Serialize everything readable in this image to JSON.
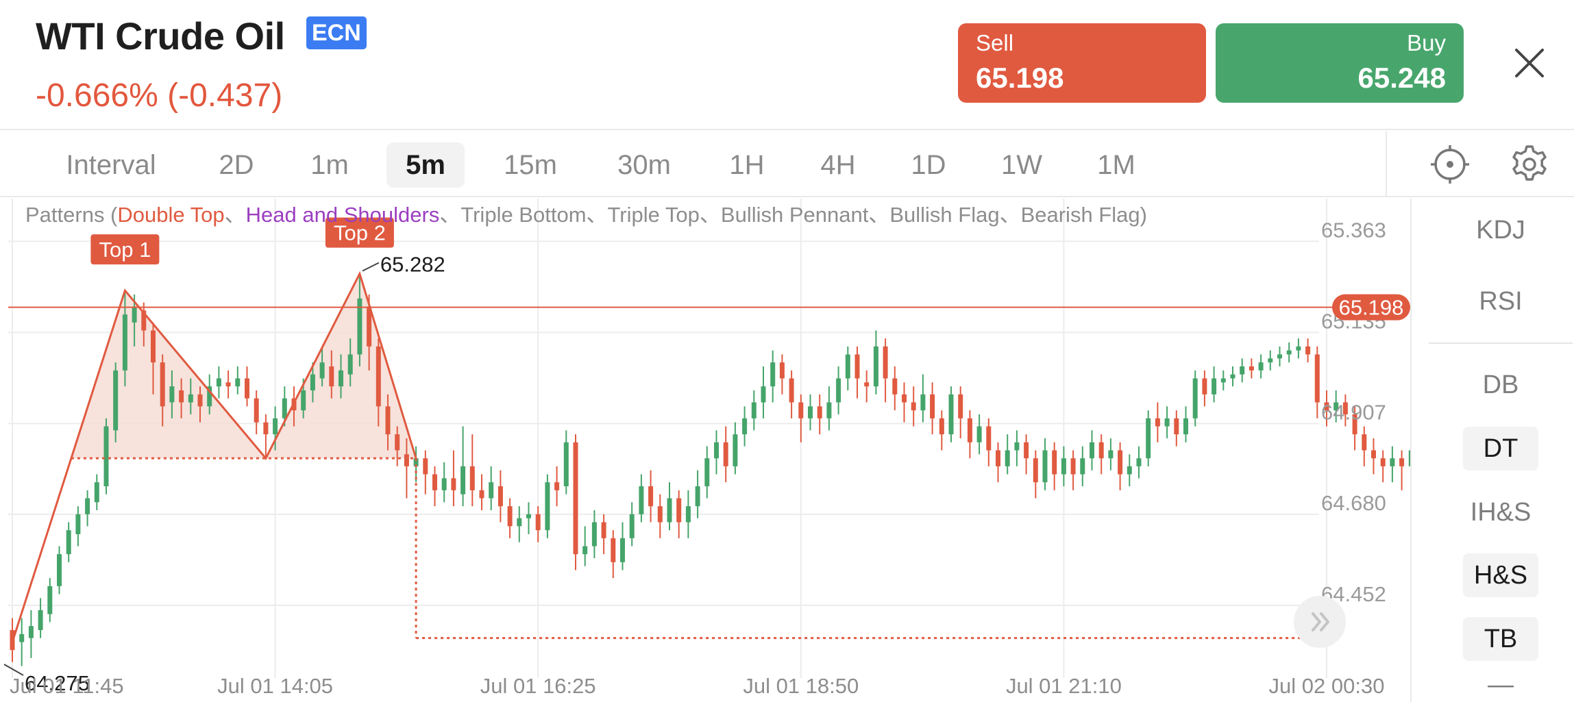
{
  "header": {
    "title": "WTI Crude Oil",
    "badge": "ECN",
    "change": "-0.666% (-0.437)",
    "sell_label": "Sell",
    "sell_price": "65.198",
    "buy_label": "Buy",
    "buy_price": "65.248",
    "close_icon": "close-icon"
  },
  "intervals": {
    "label": "Interval",
    "items": [
      "2D",
      "1m",
      "5m",
      "15m",
      "30m",
      "1H",
      "4H",
      "1D",
      "1W",
      "1M"
    ],
    "active": "5m"
  },
  "tools": {
    "icons": [
      "crosshair-icon",
      "gear-icon"
    ]
  },
  "indicators": {
    "items": [
      "KDJ",
      "RSI",
      "DB",
      "DT",
      "IH&S",
      "H&S",
      "TB",
      "—"
    ],
    "selected": [
      "DT",
      "H&S",
      "TB"
    ]
  },
  "legend": {
    "prefix": "Patterns (",
    "double_top": "Double Top",
    "sep1": "、",
    "head_shoulders": "Head and Shoulders",
    "rest": "、Triple Bottom、Triple Top、Bullish Pennant、Bullish Flag、Bearish Flag)"
  },
  "colors": {
    "up": "#45a46a",
    "down": "#e05a40",
    "grid": "#ececec",
    "pattern": "#e05a40",
    "pattern_fill": "#f6ddd6",
    "price_tag_bg": "#e05a40"
  },
  "chart_data": {
    "type": "candlestick",
    "title": "",
    "y_ticks": [
      "65.363",
      "65.135",
      "64.907",
      "64.680",
      "64.452"
    ],
    "y_tick_values": [
      65.363,
      65.135,
      64.907,
      64.68,
      64.452
    ],
    "x_ticks": [
      "Jul 01 11:45",
      "Jul 01 14:05",
      "Jul 01 16:25",
      "Jul 01 18:50",
      "Jul 01 21:10",
      "Jul 02 00:30"
    ],
    "x_tick_candle_index": [
      0,
      28,
      56,
      84,
      112,
      140
    ],
    "ylim": [
      64.27,
      65.47
    ],
    "current_price": "65.198",
    "current_price_value": 65.198,
    "high_label": "65.282",
    "low_label": "64.275",
    "pattern": {
      "name": "Double Top",
      "top1_label": "Top 1",
      "top2_label": "Top 2",
      "points": [
        [
          0,
          64.36
        ],
        [
          12,
          65.24
        ],
        [
          27,
          64.82
        ],
        [
          37,
          65.282
        ],
        [
          43,
          64.82
        ]
      ],
      "neckline": 64.82,
      "target": 64.37,
      "target_end_index": 141
    },
    "candles": [
      [
        64.39,
        64.34,
        64.31,
        64.42
      ],
      [
        64.36,
        64.38,
        64.3,
        64.42
      ],
      [
        64.37,
        64.4,
        64.32,
        64.44
      ],
      [
        64.39,
        64.44,
        64.37,
        64.47
      ],
      [
        64.43,
        64.5,
        64.41,
        64.52
      ],
      [
        64.5,
        64.58,
        64.48,
        64.6
      ],
      [
        64.58,
        64.64,
        64.56,
        64.66
      ],
      [
        64.63,
        64.68,
        64.6,
        64.7
      ],
      [
        64.68,
        64.72,
        64.65,
        64.74
      ],
      [
        64.71,
        64.76,
        64.69,
        64.78
      ],
      [
        64.75,
        64.9,
        64.73,
        64.92
      ],
      [
        64.89,
        65.04,
        64.86,
        65.06
      ],
      [
        65.04,
        65.18,
        65.0,
        65.24
      ],
      [
        65.16,
        65.2,
        65.1,
        65.23
      ],
      [
        65.19,
        65.14,
        65.1,
        65.21
      ],
      [
        65.14,
        65.06,
        64.98,
        65.16
      ],
      [
        65.06,
        64.95,
        64.9,
        65.08
      ],
      [
        64.96,
        65.0,
        64.92,
        65.04
      ],
      [
        64.99,
        64.96,
        64.92,
        65.02
      ],
      [
        64.96,
        64.98,
        64.93,
        65.02
      ],
      [
        64.98,
        64.95,
        64.91,
        65.0
      ],
      [
        64.95,
        65.0,
        64.93,
        65.03
      ],
      [
        65.0,
        65.02,
        64.97,
        65.05
      ],
      [
        65.01,
        65.0,
        64.97,
        65.04
      ],
      [
        65.0,
        65.02,
        64.98,
        65.05
      ],
      [
        65.02,
        64.97,
        64.95,
        65.05
      ],
      [
        64.97,
        64.91,
        64.88,
        64.99
      ],
      [
        64.91,
        64.88,
        64.82,
        64.93
      ],
      [
        64.88,
        64.92,
        64.84,
        64.95
      ],
      [
        64.92,
        64.97,
        64.9,
        65.0
      ],
      [
        64.97,
        64.94,
        64.9,
        65.0
      ],
      [
        64.94,
        64.99,
        64.92,
        65.02
      ],
      [
        64.99,
        65.03,
        64.96,
        65.06
      ],
      [
        65.02,
        65.06,
        65.0,
        65.1
      ],
      [
        65.05,
        65.0,
        64.97,
        65.09
      ],
      [
        65.0,
        65.04,
        64.97,
        65.08
      ],
      [
        65.03,
        65.08,
        65.0,
        65.12
      ],
      [
        65.08,
        65.22,
        65.05,
        65.28
      ],
      [
        65.2,
        65.1,
        65.04,
        65.23
      ],
      [
        65.1,
        64.95,
        64.9,
        65.12
      ],
      [
        64.95,
        64.88,
        64.84,
        64.98
      ],
      [
        64.88,
        64.84,
        64.8,
        64.9
      ],
      [
        64.83,
        64.8,
        64.72,
        64.87
      ],
      [
        64.8,
        64.82,
        64.76,
        64.85
      ],
      [
        64.82,
        64.78,
        64.73,
        64.84
      ],
      [
        64.78,
        64.74,
        64.7,
        64.8
      ],
      [
        64.74,
        64.77,
        64.71,
        64.81
      ],
      [
        64.77,
        64.74,
        64.7,
        64.84
      ],
      [
        64.73,
        64.8,
        64.7,
        64.9
      ],
      [
        64.8,
        64.74,
        64.7,
        64.88
      ],
      [
        64.74,
        64.72,
        64.69,
        64.78
      ],
      [
        64.72,
        64.76,
        64.69,
        64.8
      ],
      [
        64.75,
        64.7,
        64.66,
        64.79
      ],
      [
        64.7,
        64.65,
        64.62,
        64.72
      ],
      [
        64.65,
        64.67,
        64.61,
        64.7
      ],
      [
        64.67,
        64.68,
        64.63,
        64.71
      ],
      [
        64.68,
        64.64,
        64.61,
        64.7
      ],
      [
        64.64,
        64.76,
        64.62,
        64.78
      ],
      [
        64.76,
        64.74,
        64.7,
        64.8
      ],
      [
        64.75,
        64.86,
        64.73,
        64.89
      ],
      [
        64.86,
        64.58,
        64.54,
        64.88
      ],
      [
        64.58,
        64.6,
        64.55,
        64.65
      ],
      [
        64.6,
        64.66,
        64.57,
        64.69
      ],
      [
        64.66,
        64.62,
        64.58,
        64.68
      ],
      [
        64.62,
        64.56,
        64.52,
        64.64
      ],
      [
        64.56,
        64.62,
        64.54,
        64.66
      ],
      [
        64.62,
        64.68,
        64.6,
        64.71
      ],
      [
        64.68,
        64.75,
        64.66,
        64.78
      ],
      [
        64.75,
        64.7,
        64.66,
        64.79
      ],
      [
        64.7,
        64.66,
        64.62,
        64.73
      ],
      [
        64.66,
        64.72,
        64.64,
        64.76
      ],
      [
        64.72,
        64.66,
        64.62,
        64.74
      ],
      [
        64.66,
        64.7,
        64.62,
        64.74
      ],
      [
        64.7,
        64.75,
        64.67,
        64.79
      ],
      [
        64.75,
        64.82,
        64.72,
        64.85
      ],
      [
        64.82,
        64.86,
        64.78,
        64.89
      ],
      [
        64.86,
        64.8,
        64.76,
        64.9
      ],
      [
        64.8,
        64.88,
        64.78,
        64.91
      ],
      [
        64.88,
        64.92,
        64.85,
        64.95
      ],
      [
        64.92,
        64.96,
        64.89,
        64.99
      ],
      [
        64.96,
        65.0,
        64.92,
        65.05
      ],
      [
        65.0,
        65.06,
        64.96,
        65.09
      ],
      [
        65.06,
        65.02,
        64.98,
        65.08
      ],
      [
        65.02,
        64.96,
        64.92,
        65.04
      ],
      [
        64.96,
        64.92,
        64.86,
        64.98
      ],
      [
        64.92,
        64.95,
        64.89,
        64.98
      ],
      [
        64.95,
        64.92,
        64.88,
        64.98
      ],
      [
        64.92,
        64.96,
        64.89,
        65.0
      ],
      [
        64.96,
        65.02,
        64.93,
        65.05
      ],
      [
        65.02,
        65.08,
        64.99,
        65.1
      ],
      [
        65.08,
        65.02,
        64.97,
        65.1
      ],
      [
        65.01,
        65.0,
        64.96,
        65.04
      ],
      [
        65.0,
        65.1,
        64.98,
        65.14
      ],
      [
        65.1,
        65.02,
        64.96,
        65.12
      ],
      [
        65.02,
        64.98,
        64.94,
        65.05
      ],
      [
        64.98,
        64.96,
        64.91,
        65.01
      ],
      [
        64.96,
        64.94,
        64.9,
        65.0
      ],
      [
        64.94,
        64.98,
        64.91,
        65.03
      ],
      [
        64.98,
        64.92,
        64.88,
        65.01
      ],
      [
        64.92,
        64.88,
        64.84,
        64.94
      ],
      [
        64.88,
        64.98,
        64.86,
        65.0
      ],
      [
        64.98,
        64.92,
        64.87,
        65.0
      ],
      [
        64.92,
        64.86,
        64.82,
        64.94
      ],
      [
        64.86,
        64.9,
        64.83,
        64.93
      ],
      [
        64.9,
        64.84,
        64.8,
        64.92
      ],
      [
        64.84,
        64.8,
        64.76,
        64.86
      ],
      [
        64.8,
        64.84,
        64.78,
        64.88
      ],
      [
        64.84,
        64.86,
        64.8,
        64.89
      ],
      [
        64.86,
        64.82,
        64.78,
        64.88
      ],
      [
        64.82,
        64.76,
        64.72,
        64.84
      ],
      [
        64.76,
        64.84,
        64.74,
        64.87
      ],
      [
        64.84,
        64.78,
        64.74,
        64.86
      ],
      [
        64.78,
        64.82,
        64.75,
        64.85
      ],
      [
        64.82,
        64.78,
        64.74,
        64.84
      ],
      [
        64.78,
        64.82,
        64.75,
        64.85
      ],
      [
        64.82,
        64.86,
        64.79,
        64.89
      ],
      [
        64.86,
        64.82,
        64.78,
        64.88
      ],
      [
        64.82,
        64.84,
        64.79,
        64.87
      ],
      [
        64.84,
        64.78,
        64.74,
        64.86
      ],
      [
        64.78,
        64.8,
        64.75,
        64.83
      ],
      [
        64.8,
        64.82,
        64.77,
        64.85
      ],
      [
        64.82,
        64.92,
        64.8,
        64.94
      ],
      [
        64.92,
        64.9,
        64.86,
        64.96
      ],
      [
        64.9,
        64.92,
        64.87,
        64.95
      ],
      [
        64.92,
        64.88,
        64.85,
        64.94
      ],
      [
        64.88,
        64.92,
        64.86,
        64.95
      ],
      [
        64.92,
        65.02,
        64.9,
        65.04
      ],
      [
        65.02,
        64.98,
        64.95,
        65.04
      ],
      [
        64.98,
        65.02,
        64.96,
        65.05
      ],
      [
        65.01,
        65.02,
        64.99,
        65.04
      ],
      [
        65.02,
        65.03,
        65.0,
        65.05
      ],
      [
        65.03,
        65.05,
        65.01,
        65.07
      ],
      [
        65.05,
        65.04,
        65.02,
        65.07
      ],
      [
        65.04,
        65.06,
        65.02,
        65.08
      ],
      [
        65.06,
        65.07,
        65.04,
        65.09
      ],
      [
        65.07,
        65.08,
        65.05,
        65.1
      ],
      [
        65.08,
        65.09,
        65.06,
        65.11
      ],
      [
        65.09,
        65.1,
        65.07,
        65.12
      ],
      [
        65.1,
        65.08,
        65.06,
        65.12
      ],
      [
        65.08,
        64.96,
        64.92,
        65.1
      ],
      [
        64.96,
        64.94,
        64.9,
        64.99
      ],
      [
        64.94,
        64.96,
        64.91,
        64.99
      ],
      [
        64.96,
        64.93,
        64.9,
        64.98
      ],
      [
        64.93,
        64.88,
        64.84,
        64.95
      ],
      [
        64.88,
        64.84,
        64.8,
        64.9
      ],
      [
        64.84,
        64.82,
        64.78,
        64.87
      ],
      [
        64.82,
        64.8,
        64.76,
        64.84
      ],
      [
        64.8,
        64.82,
        64.76,
        64.85
      ],
      [
        64.82,
        64.8,
        64.74,
        64.84
      ],
      [
        64.8,
        64.84,
        64.78,
        64.86
      ]
    ]
  }
}
